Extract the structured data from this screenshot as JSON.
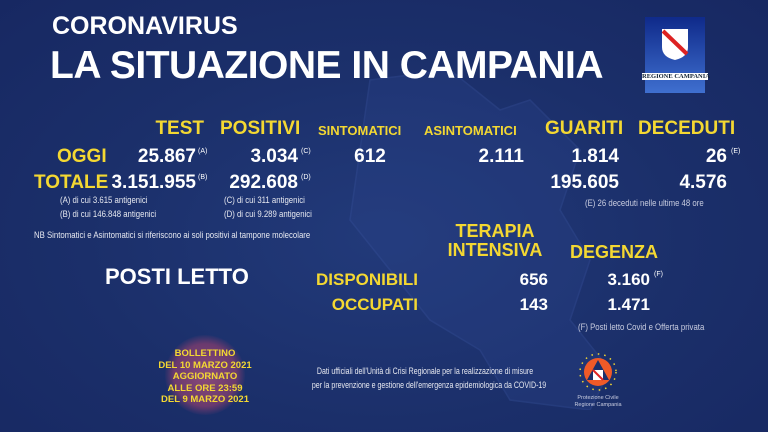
{
  "header": {
    "kicker": "CORONAVIRUS",
    "title": "LA SITUAZIONE IN CAMPANIA"
  },
  "logo": {
    "label": "REGIONE CAMPANIA"
  },
  "columns": {
    "test": "TEST",
    "positivi": "POSITIVI",
    "sintomatici": "SINTOMATICI",
    "asintomatici": "ASINTOMATICI",
    "guariti": "GUARITI",
    "deceduti": "DECEDUTI"
  },
  "oggi": {
    "label": "OGGI",
    "test": "25.867",
    "test_note": "(A)",
    "positivi": "3.034",
    "positivi_note": "(C)",
    "sintomatici": "612",
    "asintomatici": "2.111",
    "guariti": "1.814",
    "deceduti": "26",
    "deceduti_note": "(E)"
  },
  "totale": {
    "label": "TOTALE",
    "test": "3.151.955",
    "test_note": "(B)",
    "positivi": "292.608",
    "positivi_note": "(D)",
    "guariti": "195.605",
    "deceduti": "4.576"
  },
  "notes": {
    "a": "(A) di cui 3.615 antigenici",
    "b": "(B) di cui 146.848 antigenici",
    "c": "(C) di cui 311 antigenici",
    "d": "(D) di cui 9.289 antigenici",
    "e": "(E) 26 deceduti nelle ultime 48 ore",
    "nb": "NB Sintomatici e Asintomatici si riferiscono ai soli positivi al tampone molecolare",
    "f": "(F) Posti letto Covid e Offerta privata"
  },
  "posti_letto": {
    "title": "POSTI LETTO",
    "col_ti_1": "TERAPIA",
    "col_ti_2": "INTENSIVA",
    "col_degenza": "DEGENZA",
    "disponibili": {
      "label": "DISPONIBILI",
      "ti": "656",
      "degenza": "3.160",
      "degenza_note": "(F)"
    },
    "occupati": {
      "label": "OCCUPATI",
      "ti": "143",
      "degenza": "1.471"
    }
  },
  "bollettino": [
    "BOLLETTINO",
    "DEL 10 MARZO 2021",
    "AGGIORNATO",
    "ALLE ORE 23:59",
    "DEL 9 MARZO 2021"
  ],
  "footer": {
    "line1": "Dati ufficiali dell'Unità di Crisi Regionale per la realizzazione di misure",
    "line2": "per la prevenzione e gestione dell'emergenza epidemiologica da COVID-19"
  },
  "protezione": {
    "line1": "Protezione Civile",
    "line2": "Regione Campania"
  },
  "colors": {
    "background": "#1b2f6a",
    "accent": "#f4d832",
    "text": "#ffffff"
  }
}
